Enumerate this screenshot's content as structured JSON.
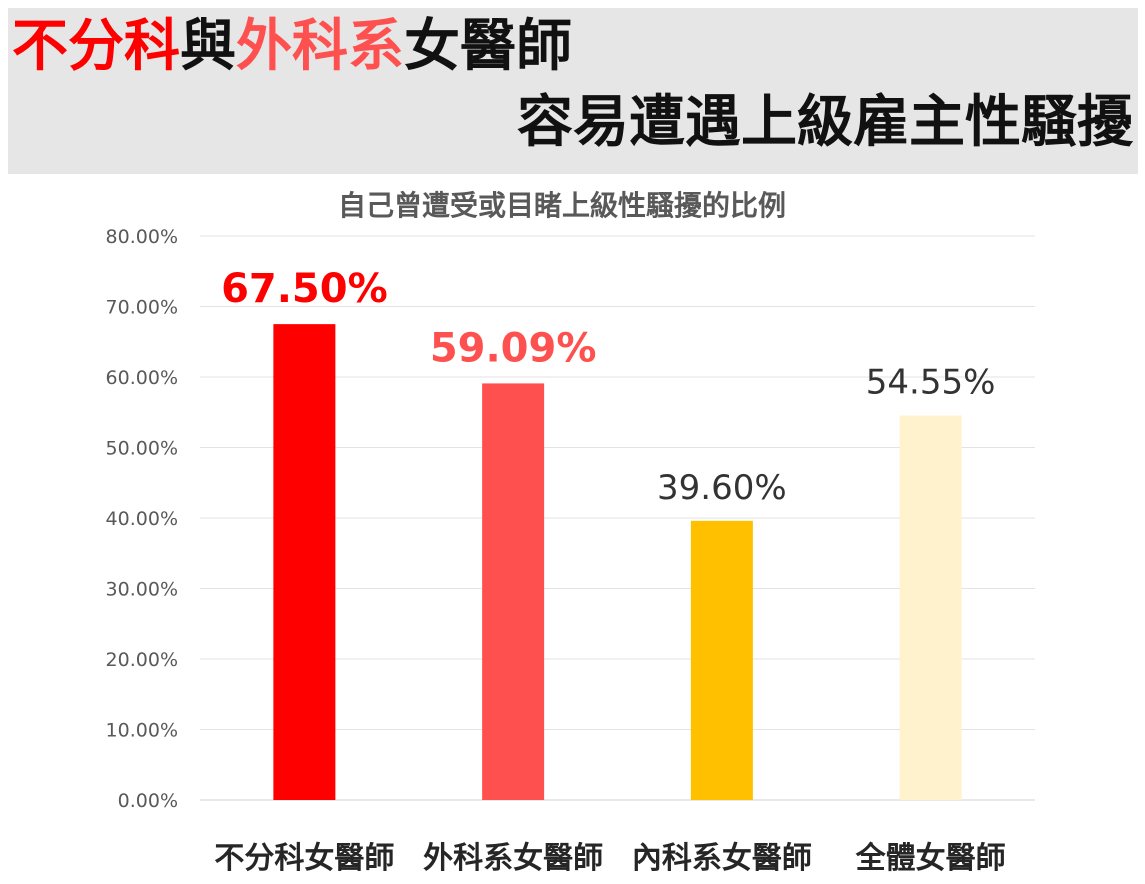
{
  "header": {
    "line1": [
      {
        "text": "不分科",
        "color": "#ff0000"
      },
      {
        "text": "與",
        "color": "#111111"
      },
      {
        "text": "外科系",
        "color": "#ff5050"
      },
      {
        "text": "女醫師",
        "color": "#111111"
      }
    ],
    "line2": "容易遭遇上級雇主性騷擾"
  },
  "chart_data": {
    "type": "bar",
    "title": "自己曾遭受或目睹上級性騷擾的比例",
    "categories": [
      "不分科女醫師",
      "外科系女醫師",
      "內科系女醫師",
      "全體女醫師"
    ],
    "values": [
      67.5,
      59.09,
      39.6,
      54.55
    ],
    "value_labels": [
      "67.50%",
      "59.09%",
      "39.60%",
      "54.55%"
    ],
    "bar_colors": [
      "#ff0000",
      "#ff5050",
      "#ffc000",
      "#fff2cc"
    ],
    "label_colors": [
      "#ff0000",
      "#ff5050",
      "#333333",
      "#333333"
    ],
    "label_bold": [
      true,
      true,
      false,
      false
    ],
    "ylim": [
      0,
      80
    ],
    "yticks": [
      "0.00%",
      "10.00%",
      "20.00%",
      "30.00%",
      "40.00%",
      "50.00%",
      "60.00%",
      "70.00%",
      "80.00%"
    ],
    "grid": true,
    "legend": "none"
  }
}
